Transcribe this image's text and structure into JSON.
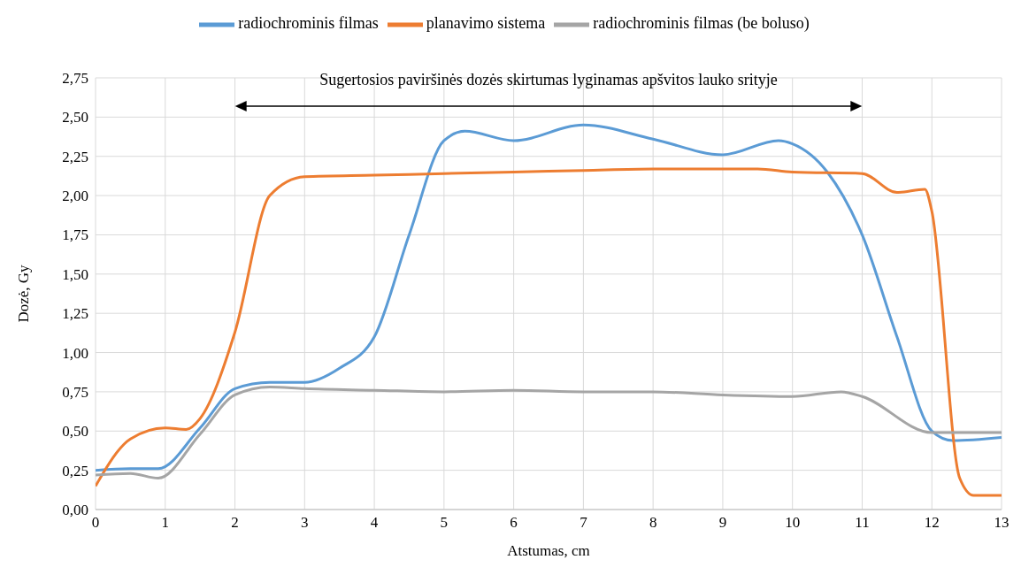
{
  "chart_data": {
    "type": "line",
    "xlabel": "Atstumas, cm",
    "ylabel": "Dozė, Gy",
    "series": [
      {
        "name": "radiochrominis filmas",
        "color": "#5b9bd5",
        "x": [
          0,
          0.5,
          0.9,
          1.5,
          2,
          2.5,
          3,
          3.5,
          4,
          4.5,
          5,
          5.3,
          6,
          7,
          8,
          9,
          9.8,
          10,
          10.5,
          11,
          11.5,
          12,
          12.3,
          13
        ],
        "values": [
          0.25,
          0.26,
          0.26,
          0.52,
          0.77,
          0.81,
          0.81,
          0.9,
          1.1,
          1.75,
          2.35,
          2.41,
          2.35,
          2.45,
          2.36,
          2.26,
          2.35,
          2.33,
          2.15,
          1.75,
          1.1,
          0.5,
          0.44,
          0.46
        ]
      },
      {
        "name": "planavimo sistema",
        "color": "#ed7d31",
        "x": [
          0,
          0.5,
          1,
          1.3,
          1.5,
          2,
          2.5,
          3,
          4,
          5,
          6,
          7,
          8,
          9.5,
          10,
          11,
          11.5,
          11.9,
          12,
          12.4,
          12.6,
          13
        ],
        "values": [
          0.15,
          0.45,
          0.52,
          0.51,
          0.58,
          1.13,
          2.0,
          2.12,
          2.13,
          2.14,
          2.15,
          2.16,
          2.17,
          2.17,
          2.15,
          2.14,
          2.02,
          2.04,
          1.9,
          0.2,
          0.09,
          0.09
        ]
      },
      {
        "name": "radiochrominis filmas (be boluso)",
        "color": "#a5a5a5",
        "x": [
          0,
          0.5,
          0.9,
          1.5,
          2,
          2.5,
          3,
          4,
          5,
          6,
          7,
          8,
          9,
          10,
          10.7,
          11,
          12,
          13
        ],
        "values": [
          0.22,
          0.23,
          0.2,
          0.48,
          0.73,
          0.78,
          0.77,
          0.76,
          0.75,
          0.76,
          0.75,
          0.75,
          0.73,
          0.72,
          0.75,
          0.72,
          0.49,
          0.49
        ]
      }
    ],
    "xlim": [
      0,
      13
    ],
    "xticks": [
      0,
      1,
      2,
      3,
      4,
      5,
      6,
      7,
      8,
      9,
      10,
      11,
      12,
      13
    ],
    "ylim": [
      0,
      2.75
    ],
    "yticks": [
      {
        "value": 0,
        "label": "0,00"
      },
      {
        "value": 0.25,
        "label": "0,25"
      },
      {
        "value": 0.5,
        "label": "0,50"
      },
      {
        "value": 0.75,
        "label": "0,75"
      },
      {
        "value": 1,
        "label": "1,00"
      },
      {
        "value": 1.25,
        "label": "1,25"
      },
      {
        "value": 1.5,
        "label": "1,50"
      },
      {
        "value": 1.75,
        "label": "1,75"
      },
      {
        "value": 2,
        "label": "2,00"
      },
      {
        "value": 2.25,
        "label": "2,25"
      },
      {
        "value": 2.5,
        "label": "2,50"
      },
      {
        "value": 2.75,
        "label": "2,75"
      }
    ],
    "annotations": [
      "Sugertosios paviršinės dozės skirtumas lyginamas apšvitos lauko srityje"
    ],
    "grid": true,
    "legend": "top",
    "marker": "none",
    "line_style": "solid"
  }
}
